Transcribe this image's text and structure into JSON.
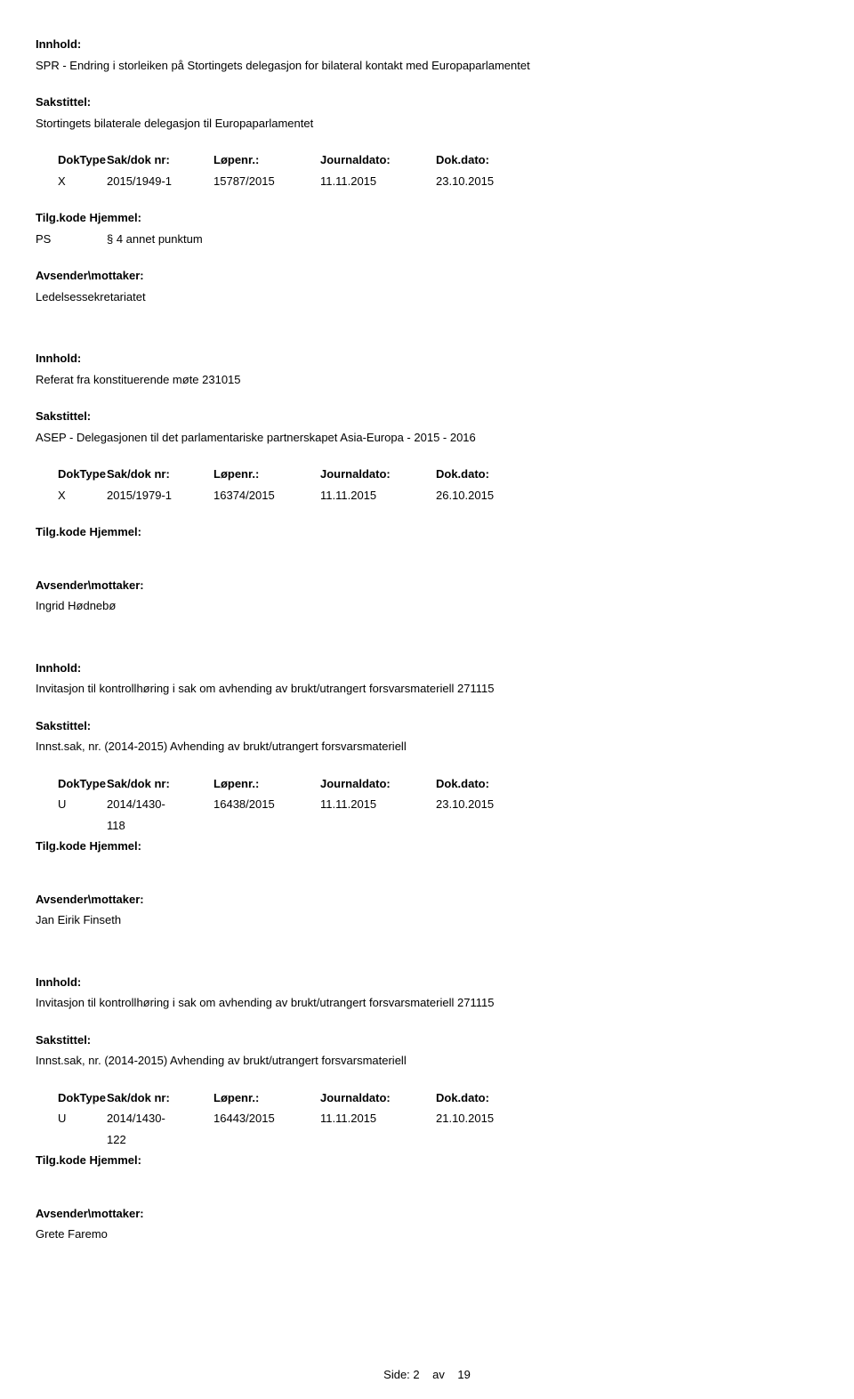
{
  "labels": {
    "innhold": "Innhold:",
    "sakstittel": "Sakstittel:",
    "doktype": "DokType",
    "sakdoknr": "Sak/dok nr:",
    "lopenr": "Løpenr.:",
    "journaldato": "Journaldato:",
    "dokdato": "Dok.dato:",
    "tilgkode": "Tilg.kode",
    "hjemmel": "Hjemmel:",
    "avsender": "Avsender\\mottaker:"
  },
  "entries": [
    {
      "innhold": "SPR - Endring i storleiken på Stortingets delegasjon for bilateral kontakt med Europaparlamentet",
      "sakstittel": "Stortingets bilaterale delegasjon til Europaparlamentet",
      "doktype": "X",
      "sakdoknr": "2015/1949-1",
      "sakdoknr2": "",
      "lopenr": "15787/2015",
      "journaldato": "11.11.2015",
      "dokdato": "23.10.2015",
      "ps_label": "PS",
      "ps_value": "§ 4 annet punktum",
      "avsender": "Ledelsessekretariatet"
    },
    {
      "innhold": "Referat fra konstituerende møte 231015",
      "sakstittel": "ASEP - Delegasjonen til det parlamentariske partnerskapet Asia-Europa - 2015 - 2016",
      "doktype": "X",
      "sakdoknr": "2015/1979-1",
      "sakdoknr2": "",
      "lopenr": "16374/2015",
      "journaldato": "11.11.2015",
      "dokdato": "26.10.2015",
      "ps_label": "",
      "ps_value": "",
      "avsender": "Ingrid Hødnebø"
    },
    {
      "innhold": "Invitasjon til kontrollhøring i sak om avhending av brukt/utrangert forsvarsmateriell 271115",
      "sakstittel": "Innst.sak, nr. (2014-2015) Avhending av brukt/utrangert forsvarsmateriell",
      "doktype": "U",
      "sakdoknr": "2014/1430-",
      "sakdoknr2": "118",
      "lopenr": "16438/2015",
      "journaldato": "11.11.2015",
      "dokdato": "23.10.2015",
      "ps_label": "",
      "ps_value": "",
      "avsender": "Jan Eirik Finseth"
    },
    {
      "innhold": "Invitasjon til kontrollhøring i sak om avhending av brukt/utrangert forsvarsmateriell 271115",
      "sakstittel": "Innst.sak, nr. (2014-2015) Avhending av brukt/utrangert forsvarsmateriell",
      "doktype": "U",
      "sakdoknr": "2014/1430-",
      "sakdoknr2": "122",
      "lopenr": "16443/2015",
      "journaldato": "11.11.2015",
      "dokdato": "21.10.2015",
      "ps_label": "",
      "ps_value": "",
      "avsender": "Grete Faremo"
    }
  ],
  "footer": {
    "prefix": "Side:",
    "page": "2",
    "separator": "av",
    "total": "19"
  }
}
